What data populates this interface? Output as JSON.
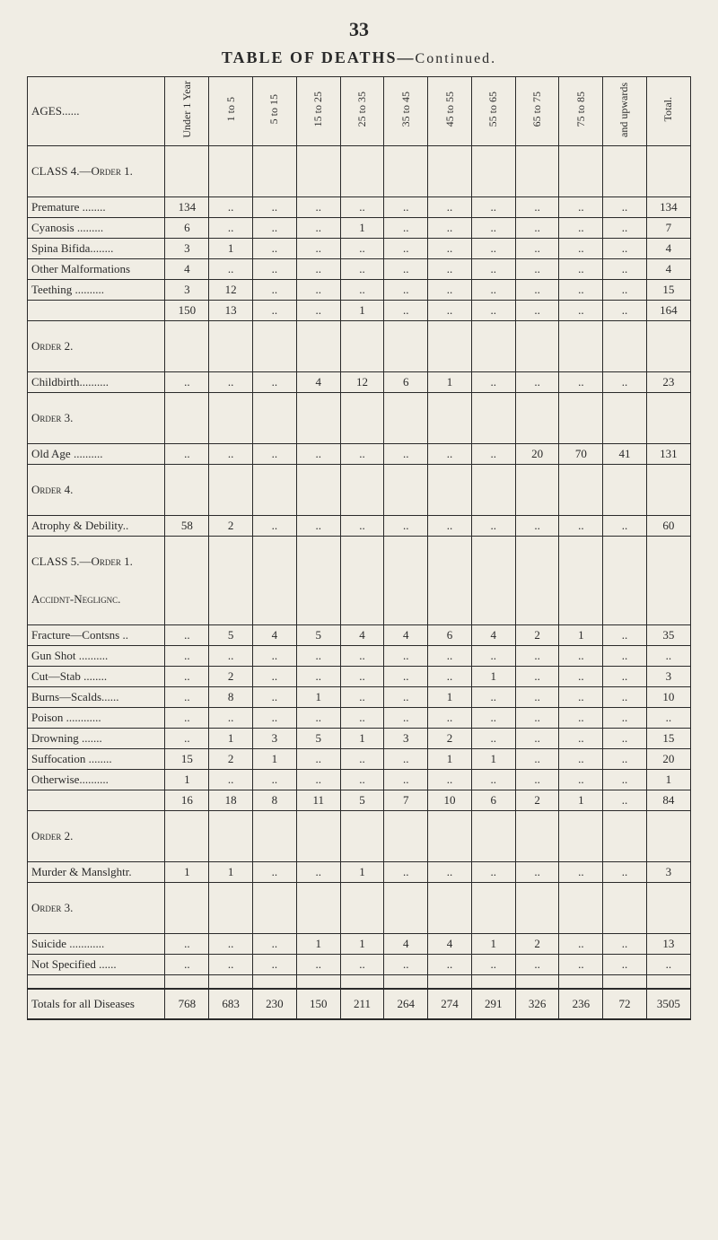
{
  "page_number": "33",
  "title_main": "TABLE OF DEATHS—",
  "title_sub": "Continued.",
  "ages_label": "AGES......",
  "columns": [
    "Under 1 Year",
    "1 to 5",
    "5 to 15",
    "15 to 25",
    "25 to 35",
    "35 to 45",
    "45 to 55",
    "55 to 65",
    "65 to 75",
    "75 to 85",
    "and upwards",
    "Total."
  ],
  "sections": [
    {
      "header": "CLASS 4.—Order 1.",
      "rows": [
        {
          "label": "Premature ........",
          "vals": [
            "134",
            "..",
            "..",
            "..",
            "..",
            "..",
            "..",
            "..",
            "..",
            "..",
            "..",
            "134"
          ]
        },
        {
          "label": "Cyanosis .........",
          "vals": [
            "6",
            "..",
            "..",
            "..",
            "1",
            "..",
            "..",
            "..",
            "..",
            "..",
            "..",
            "7"
          ]
        },
        {
          "label": "Spina Bifida........",
          "vals": [
            "3",
            "1",
            "..",
            "..",
            "..",
            "..",
            "..",
            "..",
            "..",
            "..",
            "..",
            "4"
          ]
        },
        {
          "label": "Other Malformations",
          "vals": [
            "4",
            "..",
            "..",
            "..",
            "..",
            "..",
            "..",
            "..",
            "..",
            "..",
            "..",
            "4"
          ]
        },
        {
          "label": "Teething ..........",
          "vals": [
            "3",
            "12",
            "..",
            "..",
            "..",
            "..",
            "..",
            "..",
            "..",
            "..",
            "..",
            "15"
          ]
        }
      ],
      "subtotal": {
        "label": "",
        "vals": [
          "150",
          "13",
          "..",
          "..",
          "1",
          "..",
          "..",
          "..",
          "..",
          "..",
          "..",
          "164"
        ]
      }
    },
    {
      "header": "Order 2.",
      "rows": [
        {
          "label": "Childbirth..........",
          "vals": [
            "..",
            "..",
            "..",
            "4",
            "12",
            "6",
            "1",
            "..",
            "..",
            "..",
            "..",
            "23"
          ]
        }
      ]
    },
    {
      "header": "Order 3.",
      "rows": [
        {
          "label": "Old Age ..........",
          "vals": [
            "..",
            "..",
            "..",
            "..",
            "..",
            "..",
            "..",
            "..",
            "20",
            "70",
            "41",
            "131"
          ]
        }
      ]
    },
    {
      "header": "Order 4.",
      "rows": [
        {
          "label": "Atrophy & Debility..",
          "vals": [
            "58",
            "2",
            "..",
            "..",
            "..",
            "..",
            "..",
            "..",
            "..",
            "..",
            "..",
            "60"
          ]
        }
      ]
    },
    {
      "header": "CLASS 5.—Order 1.",
      "subheader": "Accidnt-Neglignc.",
      "rows": [
        {
          "label": "Fracture—Contsns ..",
          "vals": [
            "..",
            "5",
            "4",
            "5",
            "4",
            "4",
            "6",
            "4",
            "2",
            "1",
            "..",
            "35"
          ]
        },
        {
          "label": "Gun Shot ..........",
          "vals": [
            "..",
            "..",
            "..",
            "..",
            "..",
            "..",
            "..",
            "..",
            "..",
            "..",
            "..",
            ".."
          ]
        },
        {
          "label": "Cut—Stab ........",
          "vals": [
            "..",
            "2",
            "..",
            "..",
            "..",
            "..",
            "..",
            "1",
            "..",
            "..",
            "..",
            "3"
          ]
        },
        {
          "label": "Burns—Scalds......",
          "vals": [
            "..",
            "8",
            "..",
            "1",
            "..",
            "..",
            "1",
            "..",
            "..",
            "..",
            "..",
            "10"
          ]
        },
        {
          "label": "Poison ............",
          "vals": [
            "..",
            "..",
            "..",
            "..",
            "..",
            "..",
            "..",
            "..",
            "..",
            "..",
            "..",
            ".."
          ]
        },
        {
          "label": "Drowning  .......",
          "vals": [
            "..",
            "1",
            "3",
            "5",
            "1",
            "3",
            "2",
            "..",
            "..",
            "..",
            "..",
            "15"
          ]
        },
        {
          "label": "Suffocation ........",
          "vals": [
            "15",
            "2",
            "1",
            "..",
            "..",
            "..",
            "1",
            "1",
            "..",
            "..",
            "..",
            "20"
          ]
        },
        {
          "label": "Otherwise..........",
          "vals": [
            "1",
            "..",
            "..",
            "..",
            "..",
            "..",
            "..",
            "..",
            "..",
            "..",
            "..",
            "1"
          ]
        }
      ],
      "subtotal": {
        "label": "",
        "vals": [
          "16",
          "18",
          "8",
          "11",
          "5",
          "7",
          "10",
          "6",
          "2",
          "1",
          "..",
          "84"
        ]
      }
    },
    {
      "header": "Order 2.",
      "rows": [
        {
          "label": "Murder & Manslghtr.",
          "vals": [
            "1",
            "1",
            "..",
            "..",
            "1",
            "..",
            "..",
            "..",
            "..",
            "..",
            "..",
            "3"
          ]
        }
      ]
    },
    {
      "header": "Order 3.",
      "rows": [
        {
          "label": "Suicide ............",
          "vals": [
            "..",
            "..",
            "..",
            "1",
            "1",
            "4",
            "4",
            "1",
            "2",
            "..",
            "..",
            "13"
          ]
        },
        {
          "label": "Not Specified ......",
          "vals": [
            "..",
            "..",
            "..",
            "..",
            "..",
            "..",
            "..",
            "..",
            "..",
            "..",
            "..",
            ".."
          ]
        }
      ]
    }
  ],
  "grand_total": {
    "label": "Totals for all Diseases",
    "vals": [
      "768",
      "683",
      "230",
      "150",
      "211",
      "264",
      "274",
      "291",
      "326",
      "236",
      "72",
      "3505"
    ]
  }
}
